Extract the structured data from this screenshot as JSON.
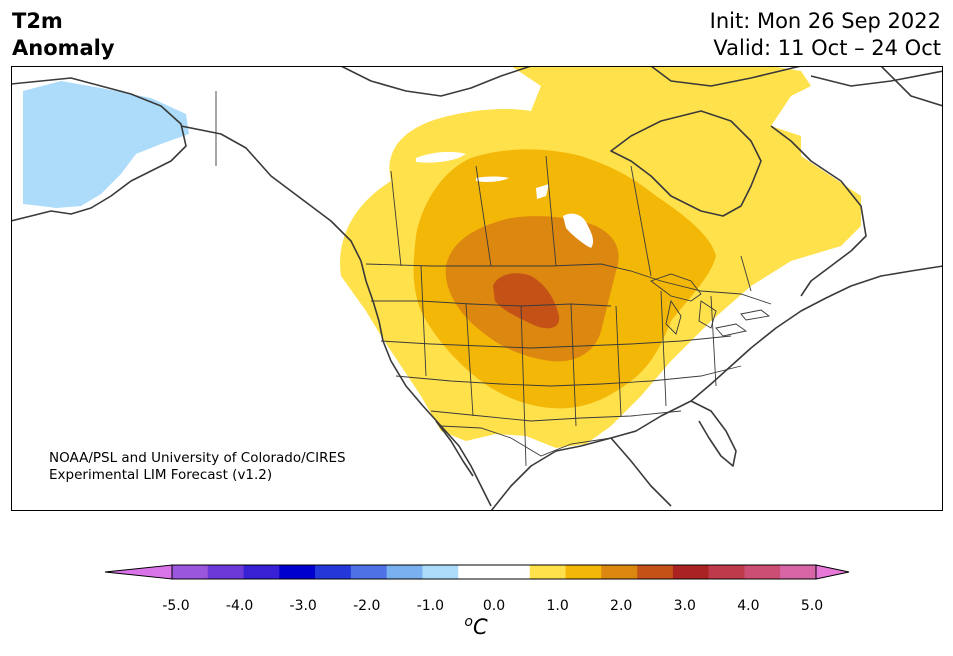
{
  "title": {
    "variable": "T2m",
    "subtitle": "Anomaly",
    "init": "Init: Mon 26 Sep 2022",
    "valid": "Valid: 11 Oct – 24 Oct"
  },
  "credit": {
    "line1": "NOAA/PSL and University of Colorado/CIRES",
    "line2": "Experimental LIM Forecast (v1.2)"
  },
  "colorbar": {
    "unit_prefix": "o",
    "unit": "C",
    "ticks": [
      "-5.0",
      "-4.0",
      "-3.0",
      "-2.0",
      "-1.0",
      "0.0",
      "1.0",
      "2.0",
      "3.0",
      "4.0",
      "5.0"
    ],
    "range": [
      -5.0,
      5.0
    ],
    "step": 0.5,
    "under_color": "#d874e8",
    "over_color": "#e878d8",
    "colors": [
      "#d874e8",
      "#9a56dc",
      "#6b3ad9",
      "#3a20d4",
      "#0000cc",
      "#2437d8",
      "#4d72e6",
      "#78b0f0",
      "#acdcfa",
      "#ffffff",
      "#ffffff",
      "#ffe14b",
      "#f3b708",
      "#dc870f",
      "#c45217",
      "#aa2222",
      "#bf3a4a",
      "#cc4e74",
      "#d865a6",
      "#e878d8"
    ]
  },
  "map": {
    "region": "North America",
    "anomaly_colors": {
      "cool_1": "#acdcfa",
      "warm_1": "#ffe14b",
      "warm_2": "#f3b708",
      "warm_3": "#dc870f",
      "warm_4": "#c45217"
    }
  }
}
